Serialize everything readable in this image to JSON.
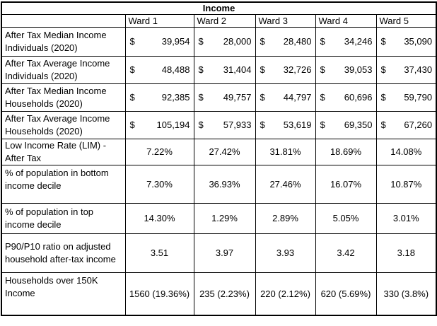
{
  "chart_data": {
    "type": "table",
    "title": "Income",
    "currency_symbol": "$",
    "columns": [
      "",
      "Ward 1",
      "Ward 2",
      "Ward 3",
      "Ward 4",
      "Ward 5"
    ],
    "rows": [
      {
        "label": "After Tax Median Income Individuals (2020)",
        "format": "currency",
        "values": [
          "39,954",
          "28,000",
          "28,480",
          "34,246",
          "35,090"
        ]
      },
      {
        "label": "After Tax Average Income Individuals (2020)",
        "format": "currency",
        "values": [
          "48,488",
          "31,404",
          "32,726",
          "39,053",
          "37,430"
        ]
      },
      {
        "label": "After Tax Median Income Households (2020)",
        "format": "currency",
        "values": [
          "92,385",
          "49,757",
          "44,797",
          "60,696",
          "59,790"
        ]
      },
      {
        "label": "After Tax Average Income Households (2020)",
        "format": "currency",
        "values": [
          "105,194",
          "57,933",
          "53,619",
          "69,350",
          "67,260"
        ]
      },
      {
        "label": "Low Income Rate (LIM) - After Tax",
        "format": "text",
        "values": [
          "7.22%",
          "27.42%",
          "31.81%",
          "18.69%",
          "14.08%"
        ]
      },
      {
        "label": "% of population in bottom income decile",
        "format": "text",
        "values": [
          "7.30%",
          "36.93%",
          "27.46%",
          "16.07%",
          "10.87%"
        ]
      },
      {
        "label": "% of population in top income decile",
        "format": "text",
        "values": [
          "14.30%",
          "1.29%",
          "2.89%",
          "5.05%",
          "3.01%"
        ]
      },
      {
        "label": "P90/P10 ratio on adjusted household after-tax income",
        "format": "text",
        "values": [
          "3.51",
          "3.97",
          "3.93",
          "3.42",
          "3.18"
        ]
      },
      {
        "label": "Households over 150K Income",
        "format": "text",
        "values": [
          "1560 (19.36%)",
          "235 (2.23%)",
          "220 (2.12%)",
          "620 (5.69%)",
          "330 (3.8%)"
        ]
      }
    ],
    "colors": {
      "border": "#000000",
      "text": "#000000",
      "background": "#ffffff"
    }
  }
}
